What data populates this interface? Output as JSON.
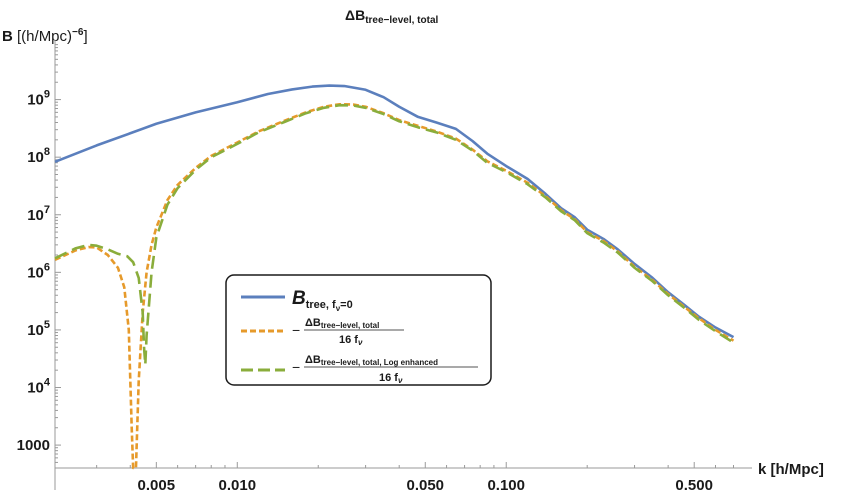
{
  "chart_data": {
    "type": "line",
    "title": "ΔB",
    "title_sub": "tree−level, total",
    "ylabel_pre": "B",
    "ylabel_unit": "[(h/Mpc)",
    "ylabel_exp": "−6",
    "ylabel_close": "]",
    "xlabel": "k [h/Mpc]",
    "xscale": "log",
    "yscale": "log",
    "xlim": [
      0.0021,
      0.74
    ],
    "ylim": [
      400,
      10000000000.0
    ],
    "grid": false,
    "legend_position": "center",
    "x_ticks": [
      {
        "v": 0.005,
        "label": "0.005"
      },
      {
        "v": 0.01,
        "label": "0.010"
      },
      {
        "v": 0.05,
        "label": "0.050"
      },
      {
        "v": 0.1,
        "label": "0.100"
      },
      {
        "v": 0.5,
        "label": "0.500"
      }
    ],
    "x_minor": [
      0.003,
      0.004,
      0.006,
      0.007,
      0.008,
      0.009,
      0.02,
      0.03,
      0.04,
      0.06,
      0.07,
      0.08,
      0.09,
      0.2,
      0.3,
      0.4,
      0.6,
      0.7
    ],
    "y_ticks": [
      {
        "v": 1000,
        "base": "1000",
        "exp": ""
      },
      {
        "v": 10000,
        "base": "10",
        "exp": "4"
      },
      {
        "v": 100000,
        "base": "10",
        "exp": "5"
      },
      {
        "v": 1000000,
        "base": "10",
        "exp": "6"
      },
      {
        "v": 10000000,
        "base": "10",
        "exp": "7"
      },
      {
        "v": 100000000,
        "base": "10",
        "exp": "8"
      },
      {
        "v": 1000000000,
        "base": "10",
        "exp": "9"
      }
    ],
    "series": [
      {
        "key": "btree",
        "color": "#5b7fbd",
        "style": "solid",
        "points": [
          [
            0.0021,
            83000000.0
          ],
          [
            0.003,
            160000000.0
          ],
          [
            0.004,
            260000000.0
          ],
          [
            0.005,
            380000000.0
          ],
          [
            0.007,
            600000000.0
          ],
          [
            0.01,
            900000000.0
          ],
          [
            0.013,
            1250000000.0
          ],
          [
            0.016,
            1500000000.0
          ],
          [
            0.019,
            1680000000.0
          ],
          [
            0.022,
            1750000000.0
          ],
          [
            0.025,
            1720000000.0
          ],
          [
            0.03,
            1480000000.0
          ],
          [
            0.035,
            1100000000.0
          ],
          [
            0.04,
            750000000.0
          ],
          [
            0.047,
            500000000.0
          ],
          [
            0.055,
            400000000.0
          ],
          [
            0.065,
            310000000.0
          ],
          [
            0.075,
            190000000.0
          ],
          [
            0.085,
            115000000.0
          ],
          [
            0.1,
            70000000.0
          ],
          [
            0.12,
            42000000.0
          ],
          [
            0.14,
            23000000.0
          ],
          [
            0.16,
            13000000.0
          ],
          [
            0.18,
            9000000.0
          ],
          [
            0.2,
            5500000.0
          ],
          [
            0.23,
            3800000.0
          ],
          [
            0.26,
            2500000.0
          ],
          [
            0.3,
            1400000.0
          ],
          [
            0.35,
            800000.0
          ],
          [
            0.4,
            450000.0
          ],
          [
            0.46,
            270000.0
          ],
          [
            0.52,
            170000.0
          ],
          [
            0.6,
            110000.0
          ],
          [
            0.7,
            75000.0
          ]
        ]
      },
      {
        "key": "dbtot",
        "color": "#e69a2b",
        "style": "short-dash",
        "points": [
          [
            0.0021,
            1650000.0
          ],
          [
            0.0025,
            2400000.0
          ],
          [
            0.0028,
            2750000.0
          ],
          [
            0.003,
            2700000.0
          ],
          [
            0.0033,
            2000000.0
          ],
          [
            0.0036,
            1200000.0
          ],
          [
            0.0038,
            550000.0
          ],
          [
            0.00395,
            100000.0
          ],
          [
            0.00405,
            2000.0
          ],
          [
            0.0041,
            400
          ],
          [
            0.0042,
            400
          ],
          [
            0.0043,
            13000.0
          ],
          [
            0.00445,
            200000.0
          ],
          [
            0.0046,
            1000000.0
          ],
          [
            0.0048,
            3000000.0
          ],
          [
            0.005,
            6000000.0
          ],
          [
            0.0055,
            18000000.0
          ],
          [
            0.006,
            33000000.0
          ],
          [
            0.007,
            65000000.0
          ],
          [
            0.008,
            105000000.0
          ],
          [
            0.01,
            180000000.0
          ],
          [
            0.012,
            280000000.0
          ],
          [
            0.015,
            430000000.0
          ],
          [
            0.018,
            600000000.0
          ],
          [
            0.021,
            750000000.0
          ],
          [
            0.024,
            830000000.0
          ],
          [
            0.027,
            820000000.0
          ],
          [
            0.03,
            750000000.0
          ],
          [
            0.035,
            580000000.0
          ],
          [
            0.04,
            440000000.0
          ],
          [
            0.047,
            350000000.0
          ],
          [
            0.055,
            280000000.0
          ],
          [
            0.065,
            210000000.0
          ],
          [
            0.075,
            135000000.0
          ],
          [
            0.085,
            85000000.0
          ],
          [
            0.1,
            58000000.0
          ],
          [
            0.12,
            36000000.0
          ],
          [
            0.14,
            21000000.0
          ],
          [
            0.16,
            12000000.0
          ],
          [
            0.18,
            8300000.0
          ],
          [
            0.2,
            5000000.0
          ],
          [
            0.23,
            3500000.0
          ],
          [
            0.26,
            2300000.0
          ],
          [
            0.3,
            1250000.0
          ],
          [
            0.35,
            730000.0
          ],
          [
            0.4,
            420000.0
          ],
          [
            0.46,
            250000.0
          ],
          [
            0.52,
            160000.0
          ],
          [
            0.6,
            100000.0
          ],
          [
            0.7,
            65000.0
          ]
        ]
      },
      {
        "key": "dblog",
        "color": "#8aad3b",
        "style": "long-dash",
        "points": [
          [
            0.0021,
            1750000.0
          ],
          [
            0.0025,
            2600000.0
          ],
          [
            0.0028,
            3000000.0
          ],
          [
            0.003,
            2900000.0
          ],
          [
            0.0033,
            2500000.0
          ],
          [
            0.0036,
            2100000.0
          ],
          [
            0.0039,
            1900000.0
          ],
          [
            0.0041,
            1500000.0
          ],
          [
            0.0043,
            800000.0
          ],
          [
            0.00445,
            200000.0
          ],
          [
            0.0045,
            50000.0
          ],
          [
            0.00455,
            25000.0
          ],
          [
            0.0046,
            80000.0
          ],
          [
            0.0048,
            1000000.0
          ],
          [
            0.005,
            4000000.0
          ],
          [
            0.0055,
            15000000.0
          ],
          [
            0.006,
            29000000.0
          ],
          [
            0.007,
            60000000.0
          ],
          [
            0.008,
            100000000.0
          ],
          [
            0.01,
            170000000.0
          ],
          [
            0.012,
            270000000.0
          ],
          [
            0.015,
            410000000.0
          ],
          [
            0.018,
            580000000.0
          ],
          [
            0.021,
            720000000.0
          ],
          [
            0.024,
            800000000.0
          ],
          [
            0.027,
            790000000.0
          ],
          [
            0.03,
            720000000.0
          ],
          [
            0.035,
            560000000.0
          ],
          [
            0.04,
            420000000.0
          ],
          [
            0.047,
            330000000.0
          ],
          [
            0.055,
            270000000.0
          ],
          [
            0.065,
            200000000.0
          ],
          [
            0.075,
            130000000.0
          ],
          [
            0.085,
            80000000.0
          ],
          [
            0.1,
            55000000.0
          ],
          [
            0.12,
            34000000.0
          ],
          [
            0.14,
            20000000.0
          ],
          [
            0.16,
            11500000.0
          ],
          [
            0.18,
            8000000.0
          ],
          [
            0.2,
            4800000.0
          ],
          [
            0.23,
            3300000.0
          ],
          [
            0.26,
            2200000.0
          ],
          [
            0.3,
            1200000.0
          ],
          [
            0.35,
            700000.0
          ],
          [
            0.4,
            400000.0
          ],
          [
            0.46,
            240000.0
          ],
          [
            0.52,
            150000.0
          ],
          [
            0.6,
            95000.0
          ],
          [
            0.7,
            60000.0
          ]
        ]
      }
    ],
    "legend": {
      "btree": {
        "main": "B",
        "sub": "tree, f",
        "subsub": "ν",
        "subend": "=0"
      },
      "dbtot": {
        "minus": "−",
        "num": "ΔB",
        "num_sub": "tree−level, total",
        "den": "16 f",
        "den_sub": "ν"
      },
      "dblog": {
        "minus": "−",
        "num": "ΔB",
        "num_sub": "tree−level, total, Log enhanced",
        "den": "16 f",
        "den_sub": "ν"
      }
    }
  }
}
